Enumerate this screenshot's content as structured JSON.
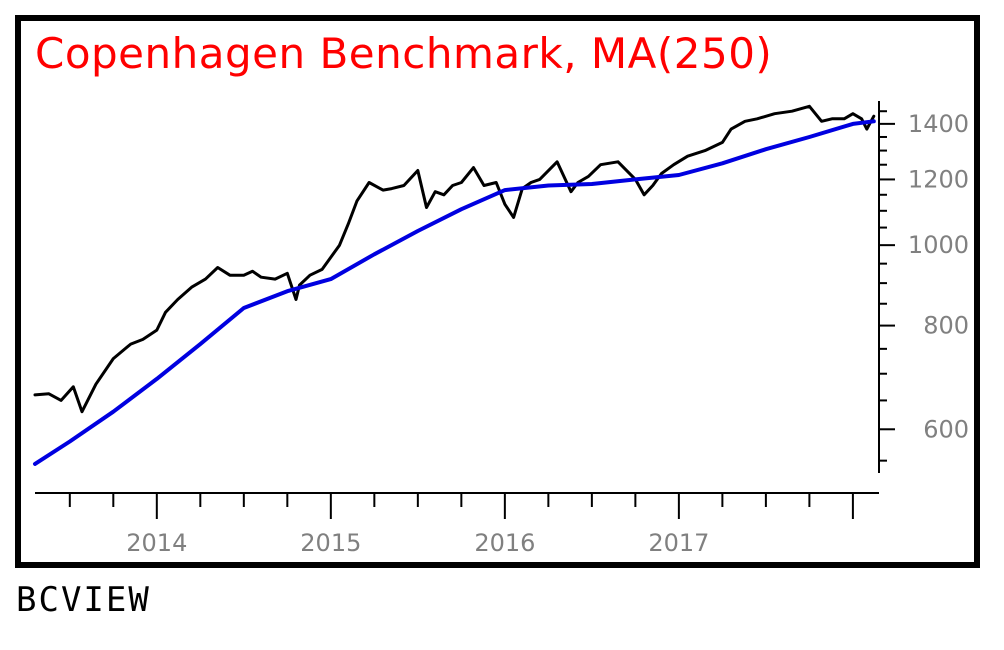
{
  "footer": {
    "label": "BCVIEW"
  },
  "chart_data": {
    "type": "line",
    "title": "Copenhagen Benchmark, MA(250)",
    "xlabel": "",
    "ylabel": "",
    "y_scale": "log",
    "xlim": [
      2013.3,
      2018.15
    ],
    "ylim": [
      530,
      1500
    ],
    "x_ticks": [
      2014,
      2015,
      2016,
      2017
    ],
    "x_tick_labels": [
      "2014",
      "2015",
      "2016",
      "2017"
    ],
    "y_ticks": [
      600,
      800,
      1000,
      1200,
      1400
    ],
    "y_tick_labels": [
      "600",
      "800",
      "1000",
      "1200",
      "1400"
    ],
    "grid": false,
    "colors": {
      "title": "#ff0000",
      "price": "#000000",
      "ma": "#0000e0",
      "axis": "#000000",
      "tick_labels": "#808080"
    },
    "series": [
      {
        "key": "index",
        "color": "#000000",
        "x": [
          2013.3,
          2013.38,
          2013.45,
          2013.52,
          2013.57,
          2013.65,
          2013.75,
          2013.85,
          2013.92,
          2014.0,
          2014.05,
          2014.12,
          2014.2,
          2014.28,
          2014.35,
          2014.42,
          2014.5,
          2014.55,
          2014.6,
          2014.68,
          2014.75,
          2014.8,
          2014.82,
          2014.88,
          2014.95,
          2015.05,
          2015.1,
          2015.15,
          2015.22,
          2015.3,
          2015.35,
          2015.42,
          2015.5,
          2015.55,
          2015.6,
          2015.65,
          2015.7,
          2015.75,
          2015.82,
          2015.88,
          2015.95,
          2016.0,
          2016.05,
          2016.1,
          2016.15,
          2016.2,
          2016.3,
          2016.38,
          2016.42,
          2016.48,
          2016.55,
          2016.65,
          2016.75,
          2016.8,
          2016.85,
          2016.9,
          2016.97,
          2017.05,
          2017.15,
          2017.25,
          2017.3,
          2017.38,
          2017.45,
          2017.55,
          2017.65,
          2017.75,
          2017.82,
          2017.88,
          2017.95,
          2018.0,
          2018.05,
          2018.08,
          2018.12
        ],
        "y": [
          660,
          662,
          650,
          675,
          630,
          680,
          730,
          760,
          770,
          790,
          830,
          860,
          890,
          910,
          940,
          920,
          920,
          930,
          915,
          910,
          925,
          860,
          895,
          920,
          935,
          1000,
          1060,
          1130,
          1190,
          1165,
          1170,
          1180,
          1230,
          1110,
          1160,
          1150,
          1180,
          1190,
          1240,
          1180,
          1190,
          1120,
          1080,
          1170,
          1190,
          1200,
          1260,
          1160,
          1190,
          1210,
          1250,
          1260,
          1200,
          1150,
          1180,
          1220,
          1250,
          1280,
          1300,
          1330,
          1380,
          1410,
          1420,
          1440,
          1450,
          1470,
          1410,
          1420,
          1420,
          1440,
          1420,
          1380,
          1430
        ]
      },
      {
        "key": "ma250",
        "color": "#0000e0",
        "x": [
          2013.3,
          2013.5,
          2013.75,
          2014.0,
          2014.25,
          2014.5,
          2014.75,
          2015.0,
          2015.25,
          2015.5,
          2015.75,
          2016.0,
          2016.25,
          2016.5,
          2016.75,
          2017.0,
          2017.25,
          2017.5,
          2017.75,
          2018.0,
          2018.12
        ],
        "y": [
          545,
          580,
          630,
          690,
          760,
          840,
          880,
          910,
          975,
          1040,
          1105,
          1165,
          1180,
          1185,
          1200,
          1215,
          1255,
          1305,
          1350,
          1400,
          1410
        ]
      }
    ]
  }
}
